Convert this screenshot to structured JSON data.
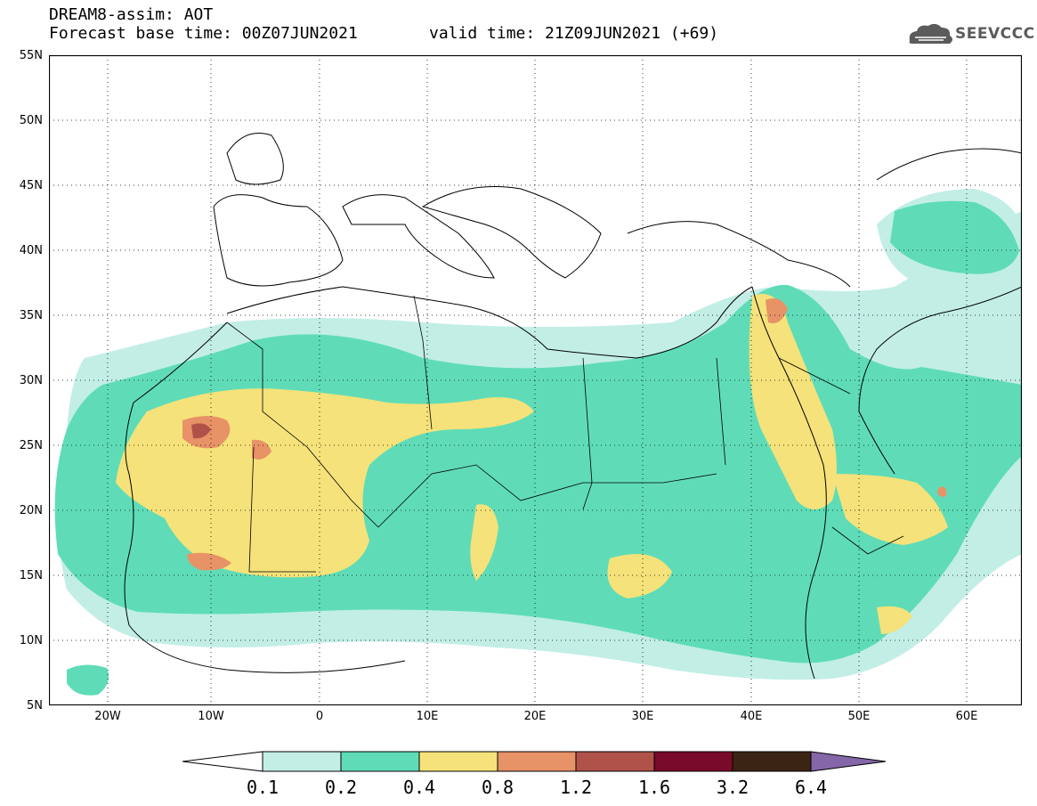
{
  "header": {
    "line1": "DREAM8-assim: AOT",
    "line2": "Forecast base time: 00Z07JUN2021",
    "valid": "valid time: 21Z09JUN2021 (+69)"
  },
  "logo": {
    "text": "SEEVCCC",
    "icon": "cloud-logo-icon"
  },
  "axes": {
    "lat_labels": [
      "55N",
      "50N",
      "45N",
      "40N",
      "35N",
      "30N",
      "25N",
      "20N",
      "15N",
      "10N",
      "5N"
    ],
    "lon_labels": [
      "20W",
      "10W",
      "0",
      "10E",
      "20E",
      "30E",
      "40E",
      "50E",
      "60E"
    ],
    "lon_range": [
      -25,
      65
    ],
    "lat_range": [
      5,
      55
    ],
    "grid": "dotted"
  },
  "colorbar": {
    "labels": [
      "0.1",
      "0.2",
      "0.4",
      "0.8",
      "1.2",
      "1.6",
      "3.2",
      "6.4"
    ],
    "colors": [
      "#ffffff",
      "#c2eee6",
      "#5fdcb7",
      "#f5e27a",
      "#e89267",
      "#b0524a",
      "#7a0a2a",
      "#3b2414",
      "#8566a8"
    ]
  },
  "colors": {
    "cat1": "#c2eee6",
    "cat2": "#5fdcb7",
    "cat3": "#f5e27a",
    "cat4": "#e89267",
    "cat5": "#b0524a"
  }
}
